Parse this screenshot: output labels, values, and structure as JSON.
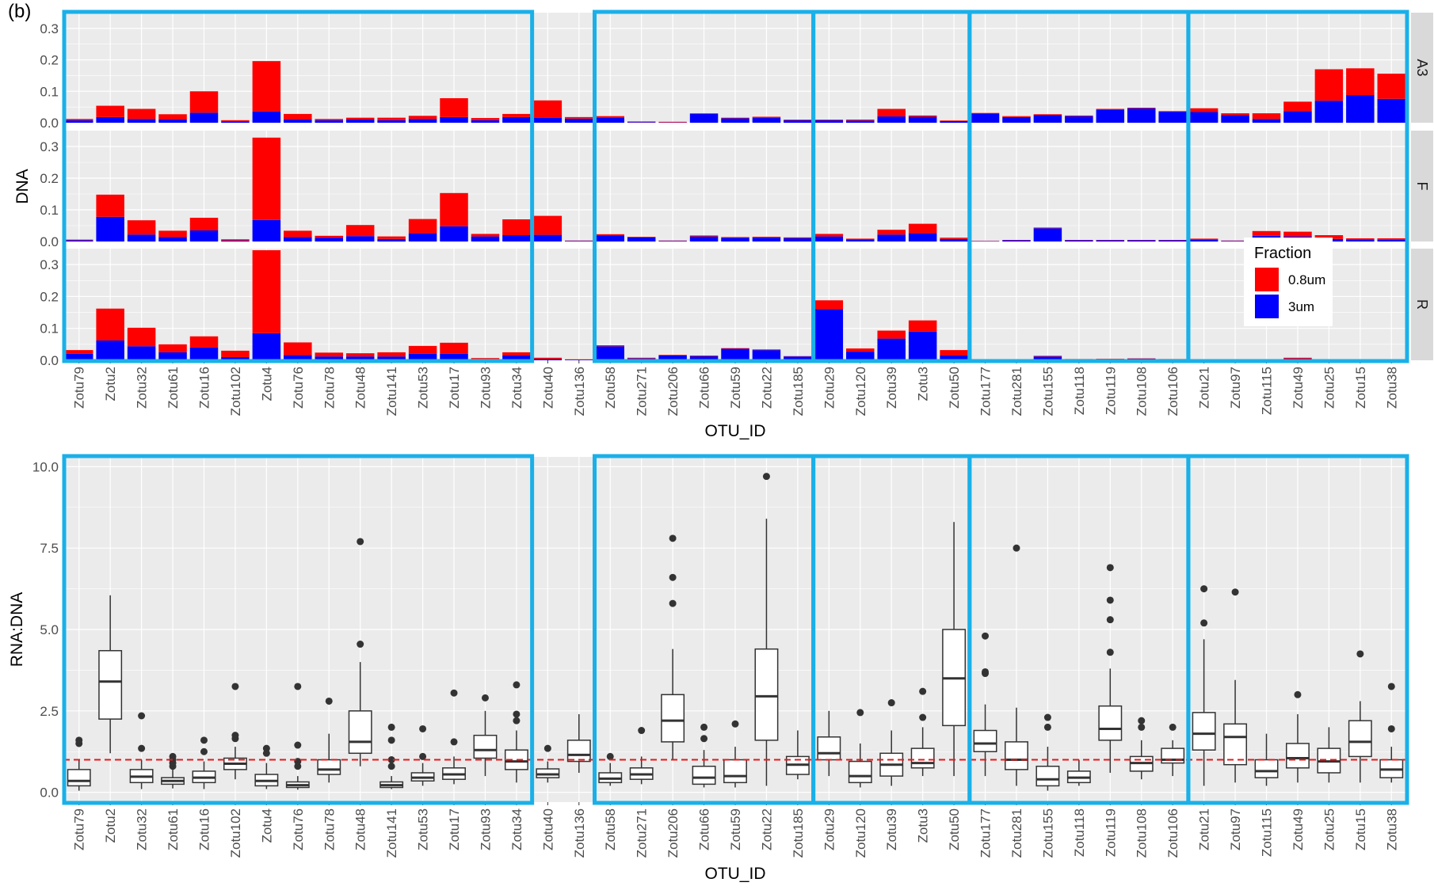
{
  "panel_label": "(b)",
  "colors": {
    "red": "#ff0000",
    "blue": "#0000ff",
    "panel_bg": "#ebebeb",
    "grid": "#ffffff",
    "strip_bg": "#d9d9d9",
    "highlight": "#1ab0e8",
    "ref_line": "#e31a1c"
  },
  "chart_data": [
    {
      "type": "bar",
      "stacked": true,
      "facets": [
        "A3",
        "F",
        "R"
      ],
      "categories": [
        "Zotu79",
        "Zotu2",
        "Zotu32",
        "Zotu61",
        "Zotu16",
        "Zotu102",
        "Zotu4",
        "Zotu76",
        "Zotu78",
        "Zotu48",
        "Zotu141",
        "Zotu53",
        "Zotu17",
        "Zotu93",
        "Zotu34",
        "Zotu40",
        "Zotu136",
        "Zotu58",
        "Zotu271",
        "Zotu206",
        "Zotu66",
        "Zotu59",
        "Zotu22",
        "Zotu185",
        "Zotu29",
        "Zotu120",
        "Zotu39",
        "Zotu3",
        "Zotu50",
        "Zotu177",
        "Zotu281",
        "Zotu155",
        "Zotu118",
        "Zotu119",
        "Zotu108",
        "Zotu106",
        "Zotu21",
        "Zotu97",
        "Zotu115",
        "Zotu49",
        "Zotu25",
        "Zotu15",
        "Zotu38"
      ],
      "xlabel": "OTU_ID",
      "ylabel": "DNA",
      "ylim": [
        0,
        0.35
      ],
      "yticks": [
        "0.0",
        "0.1",
        "0.2",
        "0.3"
      ],
      "legend": {
        "title": "Fraction",
        "position": "inside-right",
        "entries": [
          "0.8um",
          "3um"
        ]
      },
      "series_by_facet": {
        "A3": [
          {
            "name": "0.8um",
            "values": [
              0.004,
              0.036,
              0.032,
              0.017,
              0.068,
              0.004,
              0.16,
              0.018,
              0.004,
              0.006,
              0.008,
              0.01,
              0.06,
              0.007,
              0.01,
              0.055,
              0.005,
              0.005,
              0.002,
              0.002,
              0.002,
              0.002,
              0.004,
              0.002,
              0.002,
              0.003,
              0.024,
              0.004,
              0.002,
              0.002,
              0.003,
              0.003,
              0.002,
              0.002,
              0.002,
              0.002,
              0.012,
              0.006,
              0.018,
              0.03,
              0.1,
              0.085,
              0.08
            ]
          },
          {
            "name": "3um",
            "values": [
              0.008,
              0.018,
              0.012,
              0.01,
              0.032,
              0.004,
              0.036,
              0.01,
              0.008,
              0.01,
              0.008,
              0.012,
              0.018,
              0.008,
              0.018,
              0.016,
              0.013,
              0.016,
              0.002,
              0.001,
              0.028,
              0.014,
              0.015,
              0.008,
              0.008,
              0.007,
              0.02,
              0.019,
              0.005,
              0.029,
              0.018,
              0.024,
              0.021,
              0.042,
              0.046,
              0.035,
              0.034,
              0.024,
              0.012,
              0.037,
              0.07,
              0.088,
              0.076
            ]
          }
        ],
        "F": [
          {
            "name": "0.8um",
            "values": [
              0.002,
              0.07,
              0.045,
              0.02,
              0.04,
              0.004,
              0.26,
              0.02,
              0.006,
              0.035,
              0.008,
              0.045,
              0.105,
              0.008,
              0.05,
              0.06,
              0.001,
              0.004,
              0.002,
              0.001,
              0.003,
              0.002,
              0.003,
              0.002,
              0.008,
              0.002,
              0.015,
              0.03,
              0.004,
              0.001,
              0.001,
              0.002,
              0.001,
              0.001,
              0.001,
              0.001,
              0.003,
              0.001,
              0.015,
              0.015,
              0.012,
              0.004,
              0.005
            ]
          },
          {
            "name": "3um",
            "values": [
              0.004,
              0.078,
              0.022,
              0.014,
              0.035,
              0.003,
              0.068,
              0.014,
              0.012,
              0.017,
              0.008,
              0.026,
              0.048,
              0.016,
              0.02,
              0.021,
              0.002,
              0.019,
              0.013,
              0.002,
              0.016,
              0.012,
              0.012,
              0.011,
              0.016,
              0.007,
              0.022,
              0.026,
              0.008,
              0.001,
              0.004,
              0.042,
              0.004,
              0.004,
              0.004,
              0.004,
              0.006,
              0.002,
              0.018,
              0.016,
              0.008,
              0.006,
              0.005
            ]
          }
        ],
        "R": [
          {
            "name": "0.8um",
            "values": [
              0.012,
              0.1,
              0.058,
              0.025,
              0.035,
              0.02,
              0.26,
              0.04,
              0.012,
              0.01,
              0.013,
              0.025,
              0.035,
              0.003,
              0.01,
              0.004,
              0.001,
              0.003,
              0.002,
              0.002,
              0.002,
              0.002,
              0.002,
              0.001,
              0.028,
              0.01,
              0.025,
              0.035,
              0.017,
              0.001,
              0.001,
              0.002,
              0.001,
              0.001,
              0.001,
              0.001,
              0.001,
              0.001,
              0.001,
              0.003,
              0.001,
              0.001,
              0.001
            ]
          },
          {
            "name": "3um",
            "values": [
              0.02,
              0.062,
              0.044,
              0.025,
              0.04,
              0.01,
              0.085,
              0.016,
              0.012,
              0.012,
              0.012,
              0.02,
              0.02,
              0.004,
              0.015,
              0.004,
              0.002,
              0.044,
              0.006,
              0.015,
              0.013,
              0.036,
              0.032,
              0.012,
              0.16,
              0.027,
              0.068,
              0.09,
              0.015,
              0.002,
              0.001,
              0.012,
              0.003,
              0.004,
              0.005,
              0.003,
              0.002,
              0.001,
              0.001,
              0.005,
              0.002,
              0.002,
              0.002
            ]
          }
        ]
      }
    },
    {
      "type": "box",
      "categories": [
        "Zotu79",
        "Zotu2",
        "Zotu32",
        "Zotu61",
        "Zotu16",
        "Zotu102",
        "Zotu4",
        "Zotu76",
        "Zotu78",
        "Zotu48",
        "Zotu141",
        "Zotu53",
        "Zotu17",
        "Zotu93",
        "Zotu34",
        "Zotu40",
        "Zotu136",
        "Zotu58",
        "Zotu271",
        "Zotu206",
        "Zotu66",
        "Zotu59",
        "Zotu22",
        "Zotu185",
        "Zotu29",
        "Zotu120",
        "Zotu39",
        "Zotu3",
        "Zotu50",
        "Zotu177",
        "Zotu281",
        "Zotu155",
        "Zotu118",
        "Zotu119",
        "Zotu108",
        "Zotu106",
        "Zotu21",
        "Zotu97",
        "Zotu115",
        "Zotu49",
        "Zotu25",
        "Zotu15",
        "Zotu38"
      ],
      "xlabel": "OTU_ID",
      "ylabel": "RNA:DNA",
      "ylim": [
        -0.3,
        10.3
      ],
      "yticks": [
        "0.0",
        "2.5",
        "5.0",
        "7.5",
        "10.0"
      ],
      "reference_line": 1.0,
      "boxes": [
        {
          "low": 0.05,
          "q1": 0.2,
          "median": 0.35,
          "q3": 0.7,
          "high": 1.0,
          "outliers": [
            1.5,
            1.6
          ]
        },
        {
          "low": 1.2,
          "q1": 2.25,
          "median": 3.4,
          "q3": 4.35,
          "high": 6.05,
          "outliers": []
        },
        {
          "low": 0.1,
          "q1": 0.3,
          "median": 0.48,
          "q3": 0.7,
          "high": 1.0,
          "outliers": [
            1.35,
            2.35
          ]
        },
        {
          "low": 0.12,
          "q1": 0.25,
          "median": 0.35,
          "q3": 0.45,
          "high": 0.7,
          "outliers": [
            0.8,
            0.9,
            1.0,
            1.1
          ]
        },
        {
          "low": 0.1,
          "q1": 0.3,
          "median": 0.45,
          "q3": 0.65,
          "high": 0.95,
          "outliers": [
            1.25,
            1.6
          ]
        },
        {
          "low": 0.4,
          "q1": 0.7,
          "median": 0.88,
          "q3": 1.05,
          "high": 1.4,
          "outliers": [
            1.65,
            1.75,
            3.25
          ]
        },
        {
          "low": 0.1,
          "q1": 0.2,
          "median": 0.35,
          "q3": 0.55,
          "high": 0.9,
          "outliers": [
            1.2,
            1.35
          ]
        },
        {
          "low": 0.08,
          "q1": 0.15,
          "median": 0.22,
          "q3": 0.32,
          "high": 0.5,
          "outliers": [
            0.8,
            0.95,
            1.45,
            3.25
          ]
        },
        {
          "low": 0.3,
          "q1": 0.55,
          "median": 0.7,
          "q3": 1.0,
          "high": 1.8,
          "outliers": [
            2.8
          ]
        },
        {
          "low": 0.8,
          "q1": 1.2,
          "median": 1.55,
          "q3": 2.5,
          "high": 4.0,
          "outliers": [
            4.55,
            7.7
          ]
        },
        {
          "low": 0.1,
          "q1": 0.15,
          "median": 0.22,
          "q3": 0.32,
          "high": 0.5,
          "outliers": [
            0.8,
            1.0,
            1.6,
            2.0
          ]
        },
        {
          "low": 0.2,
          "q1": 0.35,
          "median": 0.45,
          "q3": 0.6,
          "high": 0.9,
          "outliers": [
            1.1,
            1.95
          ]
        },
        {
          "low": 0.25,
          "q1": 0.4,
          "median": 0.55,
          "q3": 0.75,
          "high": 1.1,
          "outliers": [
            1.55,
            3.05
          ]
        },
        {
          "low": 0.5,
          "q1": 1.05,
          "median": 1.3,
          "q3": 1.75,
          "high": 2.5,
          "outliers": [
            2.9
          ]
        },
        {
          "low": 0.3,
          "q1": 0.7,
          "median": 0.95,
          "q3": 1.3,
          "high": 1.9,
          "outliers": [
            2.2,
            2.4,
            3.3
          ]
        },
        {
          "low": 0.3,
          "q1": 0.45,
          "median": 0.55,
          "q3": 0.72,
          "high": 0.95,
          "outliers": [
            1.35
          ]
        },
        {
          "low": 0.6,
          "q1": 0.95,
          "median": 1.15,
          "q3": 1.6,
          "high": 2.4,
          "outliers": []
        },
        {
          "low": 0.2,
          "q1": 0.3,
          "median": 0.42,
          "q3": 0.6,
          "high": 0.9,
          "outliers": [
            1.1
          ]
        },
        {
          "low": 0.25,
          "q1": 0.4,
          "median": 0.55,
          "q3": 0.75,
          "high": 1.1,
          "outliers": [
            1.9
          ]
        },
        {
          "low": 1.0,
          "q1": 1.55,
          "median": 2.2,
          "q3": 3.0,
          "high": 4.4,
          "outliers": [
            5.8,
            6.6,
            7.8
          ]
        },
        {
          "low": 0.15,
          "q1": 0.25,
          "median": 0.45,
          "q3": 0.8,
          "high": 1.3,
          "outliers": [
            1.65,
            2.0
          ]
        },
        {
          "low": 0.15,
          "q1": 0.3,
          "median": 0.5,
          "q3": 1.0,
          "high": 1.4,
          "outliers": [
            2.1
          ]
        },
        {
          "low": 0.2,
          "q1": 1.6,
          "median": 2.95,
          "q3": 4.4,
          "high": 8.4,
          "outliers": [
            9.7
          ]
        },
        {
          "low": 0.4,
          "q1": 0.55,
          "median": 0.85,
          "q3": 1.1,
          "high": 1.9,
          "outliers": []
        },
        {
          "low": 0.5,
          "q1": 1.0,
          "median": 1.2,
          "q3": 1.7,
          "high": 2.5,
          "outliers": []
        },
        {
          "low": 0.15,
          "q1": 0.3,
          "median": 0.5,
          "q3": 0.95,
          "high": 1.5,
          "outliers": [
            2.45
          ]
        },
        {
          "low": 0.2,
          "q1": 0.5,
          "median": 0.85,
          "q3": 1.2,
          "high": 1.9,
          "outliers": [
            2.75
          ]
        },
        {
          "low": 0.5,
          "q1": 0.75,
          "median": 0.9,
          "q3": 1.35,
          "high": 2.0,
          "outliers": [
            2.3,
            3.1
          ]
        },
        {
          "low": 0.5,
          "q1": 2.05,
          "median": 3.5,
          "q3": 5.0,
          "high": 8.3,
          "outliers": []
        },
        {
          "low": 0.5,
          "q1": 1.25,
          "median": 1.5,
          "q3": 1.9,
          "high": 2.7,
          "outliers": [
            3.65,
            3.7,
            4.8
          ]
        },
        {
          "low": 0.2,
          "q1": 0.7,
          "median": 1.0,
          "q3": 1.55,
          "high": 2.6,
          "outliers": [
            7.5
          ]
        },
        {
          "low": 0.05,
          "q1": 0.2,
          "median": 0.4,
          "q3": 0.8,
          "high": 1.4,
          "outliers": [
            2.0,
            2.3
          ]
        },
        {
          "low": 0.2,
          "q1": 0.3,
          "median": 0.45,
          "q3": 0.65,
          "high": 1.0,
          "outliers": []
        },
        {
          "low": 0.6,
          "q1": 1.6,
          "median": 1.95,
          "q3": 2.65,
          "high": 3.8,
          "outliers": [
            4.3,
            5.3,
            5.9,
            6.9
          ]
        },
        {
          "low": 0.4,
          "q1": 0.65,
          "median": 0.9,
          "q3": 1.1,
          "high": 1.6,
          "outliers": [
            2.0,
            2.2
          ]
        },
        {
          "low": 0.5,
          "q1": 0.9,
          "median": 1.0,
          "q3": 1.35,
          "high": 1.6,
          "outliers": [
            2.0
          ]
        },
        {
          "low": 0.2,
          "q1": 1.3,
          "median": 1.8,
          "q3": 2.45,
          "high": 4.7,
          "outliers": [
            5.2,
            6.25
          ]
        },
        {
          "low": 0.3,
          "q1": 0.85,
          "median": 1.7,
          "q3": 2.1,
          "high": 3.45,
          "outliers": [
            6.15
          ]
        },
        {
          "low": 0.2,
          "q1": 0.45,
          "median": 0.65,
          "q3": 1.0,
          "high": 1.8,
          "outliers": []
        },
        {
          "low": 0.3,
          "q1": 0.75,
          "median": 1.05,
          "q3": 1.5,
          "high": 2.4,
          "outliers": [
            3.0
          ]
        },
        {
          "low": 0.3,
          "q1": 0.6,
          "median": 0.95,
          "q3": 1.35,
          "high": 2.0,
          "outliers": []
        },
        {
          "low": 0.3,
          "q1": 1.1,
          "median": 1.55,
          "q3": 2.2,
          "high": 2.8,
          "outliers": [
            4.25
          ]
        },
        {
          "low": 0.3,
          "q1": 0.45,
          "median": 0.7,
          "q3": 1.0,
          "high": 1.4,
          "outliers": [
            1.95,
            3.25
          ]
        }
      ],
      "highlight_groups": [
        [
          0,
          14
        ],
        [
          17,
          23
        ],
        [
          24,
          28
        ],
        [
          29,
          35
        ],
        [
          36,
          42
        ]
      ]
    }
  ]
}
